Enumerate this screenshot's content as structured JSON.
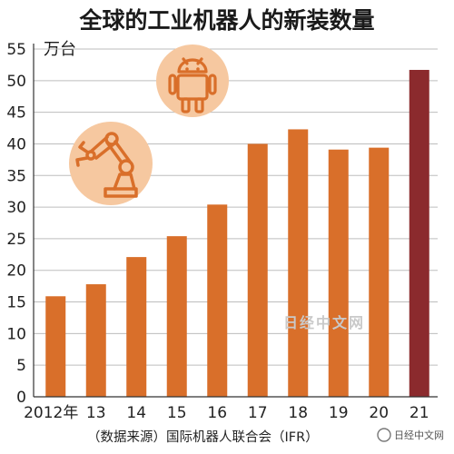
{
  "chart_data": {
    "type": "bar",
    "title": "全球的工业机器人的新装数量",
    "ylabel": "万台",
    "xlabel": "",
    "categories": [
      "2012年",
      "13",
      "14",
      "15",
      "16",
      "17",
      "18",
      "19",
      "20",
      "21"
    ],
    "values": [
      15.9,
      17.8,
      22.1,
      25.4,
      30.4,
      40.0,
      42.3,
      39.1,
      39.4,
      51.7
    ],
    "ylim": [
      0,
      55
    ],
    "yticks": [
      0,
      5,
      10,
      15,
      20,
      25,
      30,
      35,
      40,
      45,
      50,
      55
    ],
    "grid": true,
    "source": "（数据来源）国际机器人联合会（IFR）",
    "colors": {
      "bar": "#d96f2a",
      "bar_highlight": "#8b2a2d",
      "grid": "#bdbdbd",
      "icon_bg": "#f6c8a0",
      "icon": "#d96f2a"
    },
    "highlight_index": 9,
    "icons": [
      "robot-icon",
      "robot-arm-icon"
    ]
  },
  "watermark": {
    "text": "日经中文网",
    "badge": "日经中文网"
  }
}
